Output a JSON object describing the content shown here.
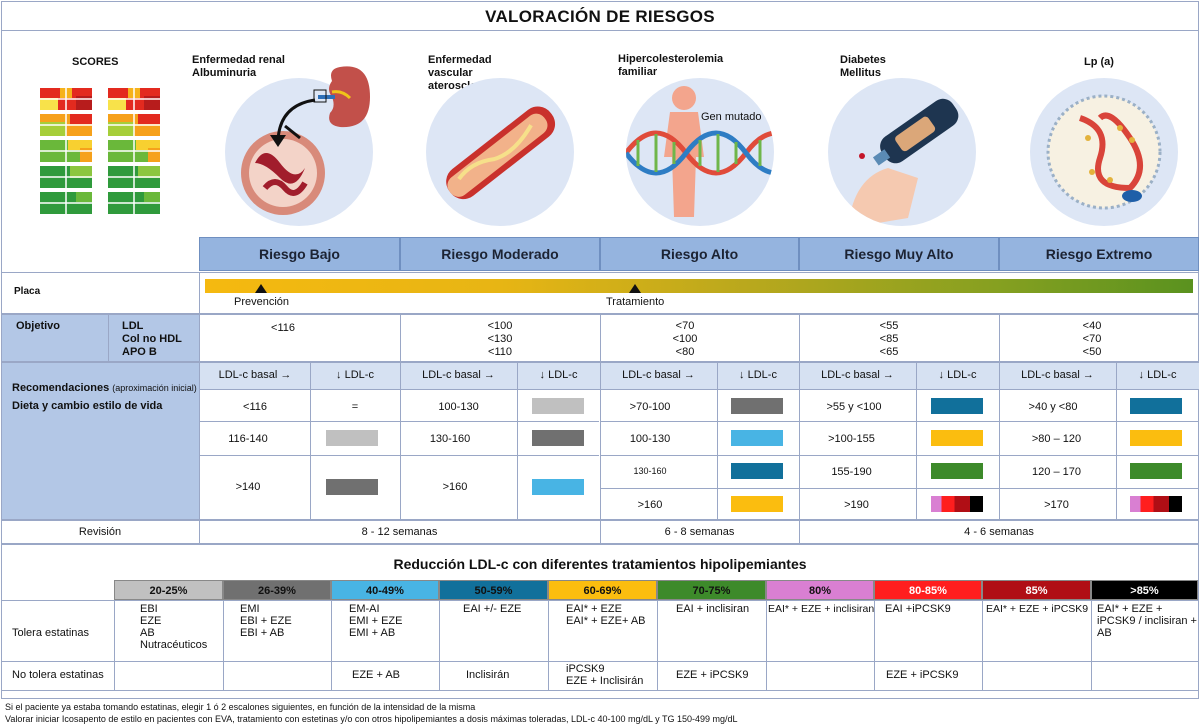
{
  "title": "VALORACIÓN DE RIESGOS",
  "categories": {
    "scores": "SCORES",
    "renal": "Enfermedad renal\nAlbuminuria",
    "vascular": "Enfermedad\nvascular\naterosclerótica",
    "hiper": "Hipercolesterolemia\nfamiliar",
    "gen": "Gen mutado",
    "diabetes": "Diabetes\nMellitus",
    "lpa": "Lp (a)"
  },
  "risk_levels": [
    "Riesgo Bajo",
    "Riesgo Moderado",
    "Riesgo Alto",
    "Riesgo Muy Alto",
    "Riesgo Extremo"
  ],
  "placa": {
    "label": "Placa",
    "prevencion": "Prevención",
    "tratamiento": "Tratamiento"
  },
  "objetivo": {
    "label": "Objetivo",
    "params": "LDL\nCol no HDL\nAPO B",
    "values": [
      "<116",
      "<100\n<130\n<110",
      "<70\n<100\n<80",
      "<55\n<85\n<65",
      "<40\n<70\n<50"
    ]
  },
  "recomendaciones": {
    "label": "Recomendaciones",
    "note": "(aproximación inicial)",
    "sub": "Dieta y cambio estilo de vida",
    "col_basal": "LDL-c basal →",
    "col_down": "↓ LDL-c",
    "bajo": [
      "<116",
      "116-140",
      ">140"
    ],
    "bajo_eq": "=",
    "moderado": [
      "100-130",
      "130-160",
      ">160"
    ],
    "alto": [
      ">70-100",
      "100-130",
      "130-160",
      ">160"
    ],
    "muyalto": [
      ">55 y <100",
      ">100-155",
      "155-190",
      ">190"
    ],
    "extremo": [
      ">40 y <80",
      ">80 – 120",
      "120 – 170",
      ">170"
    ]
  },
  "revision": {
    "label": "Revisión",
    "r1": "8 - 12 semanas",
    "r2": "6 - 8 semanas",
    "r3": "4 - 6 semanas"
  },
  "tratamientos": {
    "title": "Reducción LDL-c con diferentes tratamientos hipolipemiantes",
    "pcts": [
      "20-25%",
      "26-39%",
      "40-49%",
      "50-59%",
      "60-69%",
      "70-75%",
      "80%",
      "80-85%",
      "85%",
      ">85%"
    ],
    "row1_label": "Tolera estatinas",
    "row2_label": "No tolera estatinas",
    "tolera": [
      "EBI\nEZE\nAB\nNutracéuticos",
      "EMI\nEBI + EZE\nEBI + AB",
      "EM-AI\nEMI + EZE\nEMI + AB",
      "EAI +/- EZE",
      "EAI* + EZE\nEAI* + EZE+ AB",
      "EAI + inclisiran",
      "EAI* + EZE + inclisiran",
      "EAI +iPCSK9",
      "EAI* + EZE + iPCSK9",
      "EAI* + EZE +\niPCSK9 / inclisiran +\nAB"
    ],
    "notolera": [
      "",
      "",
      "EZE + AB",
      "Inclisirán",
      "iPCSK9\nEZE + Inclisirán",
      "EZE + iPCSK9",
      "",
      "EZE + iPCSK9",
      "",
      ""
    ]
  },
  "footnotes": [
    "Si el paciente ya estaba tomando estatinas, elegir 1 ó 2 escalones siguientes, en función de la intensidad de la misma",
    "Valorar iniciar Icosapento de estilo en pacientes con EVA, tratamiento con estetinas y/o con otros hipolipemiantes a dosis máximas toleradas, LDL-c 40-100 mg/dL y TG 150-499 mg/dL"
  ],
  "colors": {
    "gray_light": "#c0c0c0",
    "gray_dark": "#707070",
    "cyan": "#48b4e4",
    "teal": "#11709b",
    "yellow": "#fbbd0f",
    "green": "#3d8a2a",
    "pink": "#d97fd2",
    "red": "#ff1e1e",
    "darkred": "#b00e15",
    "black": "#000000"
  }
}
